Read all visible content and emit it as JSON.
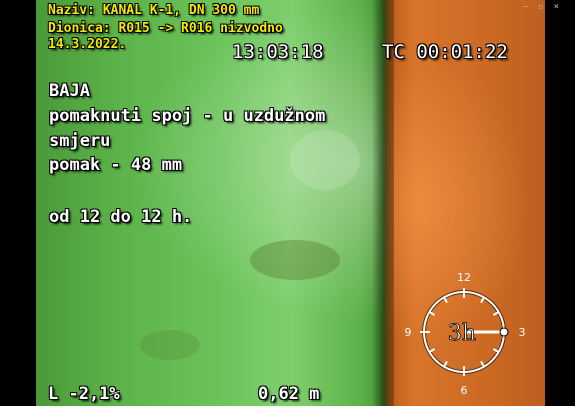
{
  "window": {
    "minimize": "–",
    "maximize": "▫",
    "close": "×"
  },
  "header": {
    "line1": "Naziv: KANAL K-1, DN 300 mm",
    "line2": "Dionica: R015 -> R016 nizvodno",
    "date": "14.3.2022.",
    "time": "13:03:18",
    "counter": "TC 00:01:22"
  },
  "annotation": {
    "line1": "BAJA",
    "line2": "pomaknuti spoj - u uzdužnom",
    "line3": "smjeru",
    "line4": "pomak - 48 mm",
    "line5": "od 12 do 12 h."
  },
  "footer": {
    "inclination": "L -2,1%",
    "distance": "0,62 m"
  },
  "clock": {
    "hour_12": "12",
    "hour_3": "3",
    "hour_6": "6",
    "hour_9": "9",
    "position": "3h"
  },
  "colors": {
    "pipe_green": "#5cb349",
    "pipe_orange": "#d8742a",
    "osd_text": "#ffffff",
    "osd_header": "#f2e800"
  },
  "icons": [
    "clock-position-icon"
  ]
}
